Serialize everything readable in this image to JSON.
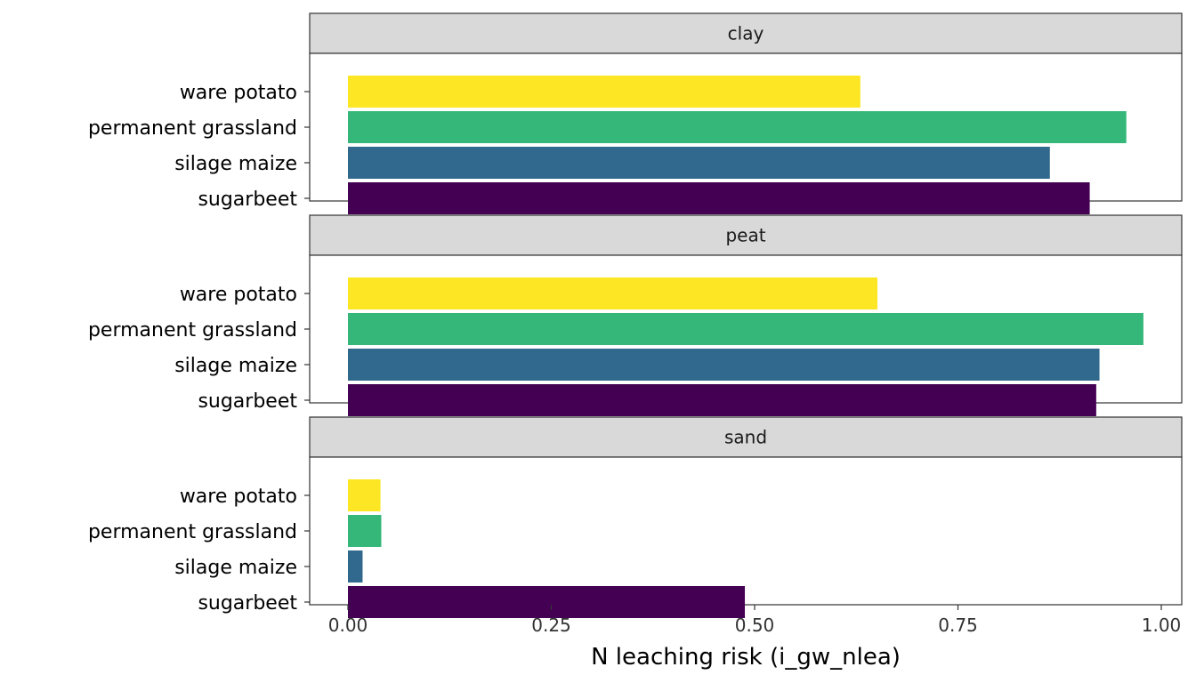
{
  "chart_data": {
    "type": "bar",
    "orientation": "horizontal",
    "facets": [
      "clay",
      "peat",
      "sand"
    ],
    "categories": [
      "ware potato",
      "permanent grassland",
      "silage maize",
      "sugarbeet"
    ],
    "colors": {
      "ware potato": "#FDE725",
      "permanent grassland": "#35B779",
      "silage maize": "#31688E",
      "sugarbeet": "#440154"
    },
    "values": {
      "clay": [
        0.63,
        0.957,
        0.863,
        0.912
      ],
      "peat": [
        0.651,
        0.978,
        0.924,
        0.92
      ],
      "sand": [
        0.04,
        0.041,
        0.018,
        0.488
      ]
    },
    "xlabel": "N leaching risk (i_gw_nlea)",
    "ylabel": "",
    "xticks": [
      "0.00",
      "0.25",
      "0.50",
      "0.75",
      "1.00"
    ],
    "xlim": [
      -0.047,
      1.025
    ],
    "grid": false,
    "legend": "none"
  }
}
